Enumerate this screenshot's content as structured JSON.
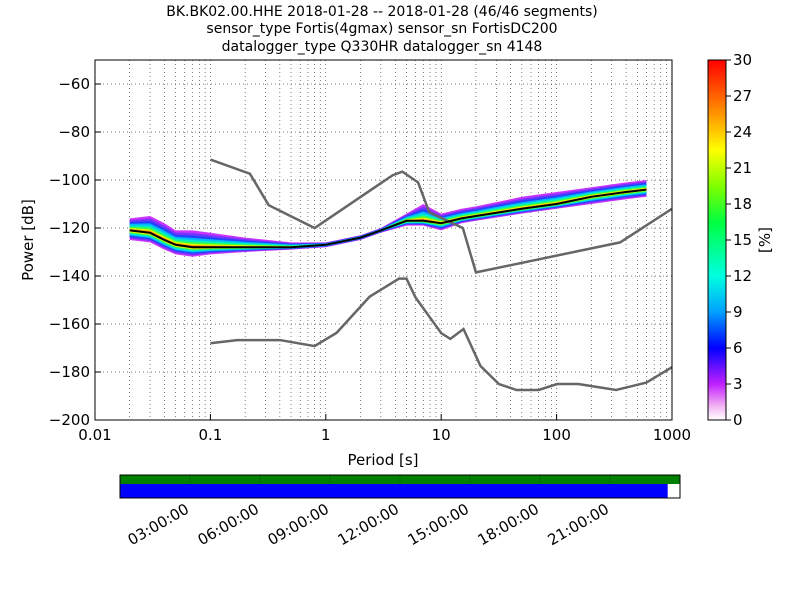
{
  "title_lines": [
    "BK.BK02.00.HHE   2018-01-28 -- 2018-01-28  (46/46 segments)",
    "sensor_type Fortis(4gmax) sensor_sn FortisDC200",
    "datalogger_type Q330HR datalogger_sn 4148"
  ],
  "chart_data": [
    {
      "type": "heatmap",
      "xlabel": "Period [s]",
      "ylabel": "Power [dB]",
      "xscale": "log",
      "xlim": [
        0.01,
        1000
      ],
      "ylim": [
        -200,
        -50
      ],
      "x_ticks": [
        "0.01",
        "0.1",
        "1",
        "10",
        "100",
        "1000"
      ],
      "y_ticks": [
        "−60",
        "−80",
        "−100",
        "−120",
        "−140",
        "−160",
        "−180",
        "−200"
      ],
      "grid": "dotted",
      "colorbar": {
        "label": "[%]",
        "ticks": [
          "0",
          "3",
          "6",
          "9",
          "12",
          "15",
          "18",
          "21",
          "24",
          "27",
          "30"
        ],
        "range": [
          0,
          30
        ]
      },
      "series": [
        {
          "role": "nhnm",
          "color": "#666666",
          "x": [
            0.1,
            0.22,
            0.32,
            0.8,
            3.8,
            4.6,
            6.3,
            7.9,
            15.4,
            20,
            354.8,
            1000
          ],
          "y": [
            -91.5,
            -97.4,
            -110.5,
            -120,
            -98,
            -96.5,
            -101,
            -113.5,
            -120,
            -138.5,
            -126,
            -112
          ]
        },
        {
          "role": "nlnm",
          "color": "#666666",
          "x": [
            0.1,
            0.17,
            0.4,
            0.8,
            1.24,
            2.4,
            4.3,
            5,
            6,
            10,
            12,
            15.6,
            21.9,
            31.6,
            45,
            70,
            101,
            154,
            328,
            600,
            1000
          ],
          "y": [
            -168,
            -166.7,
            -166.7,
            -169.2,
            -163.7,
            -148.6,
            -141.1,
            -141.1,
            -149,
            -163.8,
            -166.2,
            -162.1,
            -177.5,
            -185,
            -187.5,
            -187.5,
            -185,
            -185,
            -187.5,
            -184.4,
            -178
          ]
        },
        {
          "role": "mode",
          "color": "#000000",
          "x": [
            0.02,
            0.03,
            0.04,
            0.05,
            0.07,
            0.1,
            0.2,
            0.5,
            1,
            2,
            3,
            5,
            7,
            10,
            15,
            20,
            50,
            100,
            200,
            400,
            600
          ],
          "y": [
            -121,
            -122,
            -125,
            -127,
            -128,
            -128,
            -128,
            -128,
            -127,
            -124,
            -121,
            -117,
            -117,
            -118,
            -116,
            -115,
            -112,
            -110,
            -107,
            -105,
            -104
          ]
        }
      ],
      "spread": {
        "x": [
          0.02,
          0.03,
          0.04,
          0.05,
          0.07,
          0.1,
          0.2,
          0.5,
          1,
          2,
          3,
          5,
          7,
          10,
          15,
          20,
          50,
          100,
          200,
          400,
          600
        ],
        "upper": [
          -116,
          -115,
          -118,
          -121,
          -121,
          -122,
          -124,
          -126,
          -126,
          -123,
          -120,
          -114,
          -110,
          -114,
          -112,
          -111,
          -107,
          -105,
          -103,
          -101,
          -100
        ],
        "lower": [
          -125,
          -126,
          -129,
          -131,
          -132,
          -131,
          -130,
          -129,
          -128,
          -125,
          -122,
          -119,
          -119,
          -121,
          -118,
          -117,
          -114,
          -112,
          -110,
          -108,
          -107
        ]
      }
    },
    {
      "type": "bar",
      "role": "data availability",
      "x_ticks": [
        "03:00:00",
        "06:00:00",
        "09:00:00",
        "12:00:00",
        "15:00:00",
        "18:00:00",
        "21:00:00"
      ],
      "series": [
        {
          "color": "#008000",
          "coverage": 1.0
        },
        {
          "color": "#0000ff",
          "coverage": 0.978
        }
      ]
    }
  ]
}
